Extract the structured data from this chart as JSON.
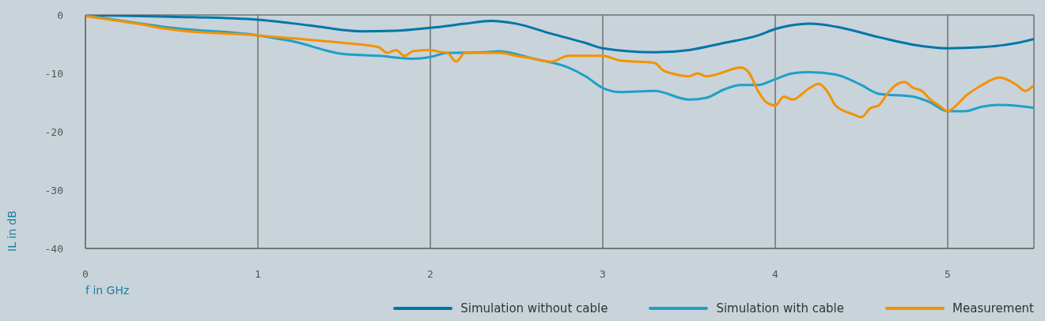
{
  "chart_data": {
    "type": "line",
    "xlabel": "f in GHz",
    "ylabel": "IL in dB",
    "xlim": [
      0,
      5.5
    ],
    "xticks": [
      0,
      1,
      2,
      3,
      4,
      5
    ],
    "ylim": [
      -40,
      0
    ],
    "yticks": [
      -40,
      -30,
      -20,
      -10,
      0
    ],
    "grid": true,
    "legend": "bottom right",
    "marker": "none",
    "line_style": "solid",
    "series": [
      {
        "name": "Simulation without cable",
        "color": "#0076a8",
        "x": [
          0,
          0.5,
          1,
          1.3,
          1.6,
          1.8,
          2,
          2.2,
          2.35,
          2.5,
          2.7,
          2.9,
          3,
          3.3,
          3.5,
          3.7,
          3.9,
          4,
          4.2,
          4.35,
          4.6,
          4.8,
          5,
          5.2,
          5.4,
          5.5
        ],
        "values": [
          0,
          -0.3,
          -0.8,
          -1.8,
          -2.8,
          -2.7,
          -2.2,
          -1.5,
          -1,
          -1.5,
          -3.2,
          -4.8,
          -5.7,
          -6.4,
          -6,
          -4.8,
          -3.5,
          -2.4,
          -1.5,
          -2,
          -3.8,
          -5.1,
          -5.7,
          -5.5,
          -4.8,
          -4.1
        ]
      },
      {
        "name": "Simulation with cable",
        "color": "#1ea0c8",
        "x": [
          0,
          0.5,
          1,
          1.2,
          1.5,
          1.7,
          1.9,
          2,
          2.1,
          2.3,
          2.4,
          2.6,
          2.8,
          2.9,
          3,
          3.1,
          3.3,
          3.5,
          3.6,
          3.7,
          3.8,
          3.9,
          4,
          4.1,
          4.2,
          4.35,
          4.5,
          4.6,
          4.8,
          4.9,
          5,
          5.1,
          5.2,
          5.3,
          5.5
        ],
        "values": [
          0,
          -2.2,
          -3.5,
          -4.5,
          -6.7,
          -7,
          -7.5,
          -7.2,
          -6.5,
          -6.4,
          -6.2,
          -7.5,
          -9,
          -10.5,
          -12.5,
          -13.2,
          -13,
          -14.5,
          -14.2,
          -12.8,
          -12,
          -12,
          -11,
          -10,
          -9.8,
          -10.2,
          -12,
          -13.5,
          -14,
          -15,
          -16.5,
          -16.5,
          -15.7,
          -15.4,
          -15.9
        ]
      },
      {
        "name": "Measurement",
        "color": "#f39200",
        "x": [
          0,
          0.3,
          0.5,
          1,
          1.2,
          1.5,
          1.7,
          1.75,
          1.8,
          1.85,
          1.9,
          2,
          2.05,
          2.1,
          2.15,
          2.2,
          2.3,
          2.4,
          2.5,
          2.6,
          2.7,
          2.8,
          3,
          3.1,
          3.3,
          3.35,
          3.4,
          3.5,
          3.55,
          3.6,
          3.7,
          3.75,
          3.8,
          3.85,
          3.9,
          3.95,
          4,
          4.05,
          4.1,
          4.2,
          4.25,
          4.3,
          4.35,
          4.45,
          4.5,
          4.55,
          4.6,
          4.65,
          4.7,
          4.75,
          4.8,
          4.85,
          4.9,
          4.95,
          5,
          5.05,
          5.1,
          5.2,
          5.3,
          5.4,
          5.45,
          5.5
        ],
        "values": [
          -0.2,
          -1.5,
          -2.5,
          -3.5,
          -4,
          -4.8,
          -5.5,
          -6.5,
          -6,
          -7,
          -6.2,
          -6,
          -6.3,
          -6.5,
          -8,
          -6.5,
          -6.5,
          -6.5,
          -7,
          -7.5,
          -8,
          -7,
          -7,
          -7.8,
          -8.2,
          -9.5,
          -10,
          -10.5,
          -10,
          -10.5,
          -9.8,
          -9.3,
          -9,
          -10,
          -13,
          -15,
          -15.5,
          -14,
          -14.5,
          -12.5,
          -11.8,
          -13,
          -15.5,
          -17,
          -17.5,
          -16,
          -15.5,
          -13.5,
          -12,
          -11.5,
          -12.5,
          -13,
          -14.5,
          -15.5,
          -16.5,
          -15.5,
          -14,
          -12,
          -10.7,
          -12,
          -13,
          -12
        ]
      }
    ]
  }
}
